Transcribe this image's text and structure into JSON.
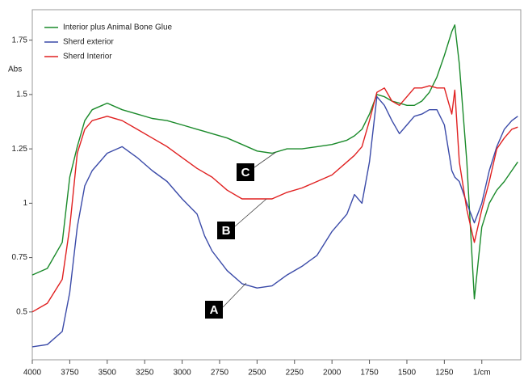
{
  "chart_data": {
    "type": "line",
    "y_label": "Abs",
    "xlim": [
      4000,
      740
    ],
    "ylim": [
      0.28,
      1.89
    ],
    "xticks": [
      4000,
      3750,
      3500,
      3250,
      3000,
      2750,
      2500,
      2250,
      2000,
      1750,
      1500,
      1250,
      {
        "value": 1000,
        "label": "1/cm"
      }
    ],
    "yticks": [
      0.5,
      0.75,
      1,
      1.25,
      1.5,
      1.75
    ],
    "x": [
      4000,
      3900,
      3800,
      3750,
      3700,
      3650,
      3600,
      3500,
      3400,
      3300,
      3200,
      3100,
      3000,
      2900,
      2850,
      2800,
      2700,
      2600,
      2500,
      2400,
      2300,
      2200,
      2100,
      2000,
      1900,
      1850,
      1800,
      1750,
      1700,
      1650,
      1600,
      1550,
      1500,
      1450,
      1400,
      1350,
      1300,
      1250,
      1200,
      1180,
      1150,
      1100,
      1050,
      1000,
      950,
      900,
      850,
      800,
      760
    ],
    "series": [
      {
        "name": "Interior plus Animal Bone Glue",
        "color": "#1a8a2a",
        "values": [
          0.67,
          0.7,
          0.82,
          1.12,
          1.26,
          1.38,
          1.43,
          1.46,
          1.43,
          1.41,
          1.39,
          1.38,
          1.36,
          1.34,
          1.33,
          1.32,
          1.3,
          1.27,
          1.24,
          1.23,
          1.25,
          1.25,
          1.26,
          1.27,
          1.29,
          1.31,
          1.34,
          1.41,
          1.5,
          1.49,
          1.47,
          1.46,
          1.45,
          1.45,
          1.47,
          1.51,
          1.58,
          1.68,
          1.79,
          1.82,
          1.64,
          1.19,
          0.56,
          0.89,
          1.0,
          1.06,
          1.1,
          1.15,
          1.19
        ]
      },
      {
        "name": "Sherd exterior",
        "color": "#3a4aa8",
        "values": [
          0.34,
          0.35,
          0.41,
          0.59,
          0.89,
          1.08,
          1.15,
          1.23,
          1.26,
          1.21,
          1.15,
          1.1,
          1.02,
          0.95,
          0.85,
          0.78,
          0.69,
          0.63,
          0.61,
          0.62,
          0.67,
          0.71,
          0.76,
          0.87,
          0.95,
          1.04,
          1.0,
          1.19,
          1.49,
          1.45,
          1.38,
          1.32,
          1.36,
          1.4,
          1.41,
          1.43,
          1.43,
          1.36,
          1.15,
          1.12,
          1.1,
          1.0,
          0.91,
          1.0,
          1.15,
          1.26,
          1.34,
          1.38,
          1.4
        ]
      },
      {
        "name": "Sherd Interior",
        "color": "#e02020",
        "values": [
          0.5,
          0.54,
          0.65,
          0.89,
          1.23,
          1.34,
          1.38,
          1.4,
          1.38,
          1.34,
          1.3,
          1.26,
          1.21,
          1.16,
          1.14,
          1.12,
          1.06,
          1.02,
          1.02,
          1.02,
          1.05,
          1.07,
          1.1,
          1.13,
          1.19,
          1.22,
          1.26,
          1.38,
          1.51,
          1.53,
          1.47,
          1.45,
          1.49,
          1.53,
          1.53,
          1.54,
          1.53,
          1.53,
          1.41,
          1.52,
          1.19,
          0.97,
          0.82,
          0.97,
          1.1,
          1.25,
          1.3,
          1.34,
          1.35
        ]
      }
    ],
    "annotations": [
      "A",
      "B",
      "C"
    ]
  }
}
